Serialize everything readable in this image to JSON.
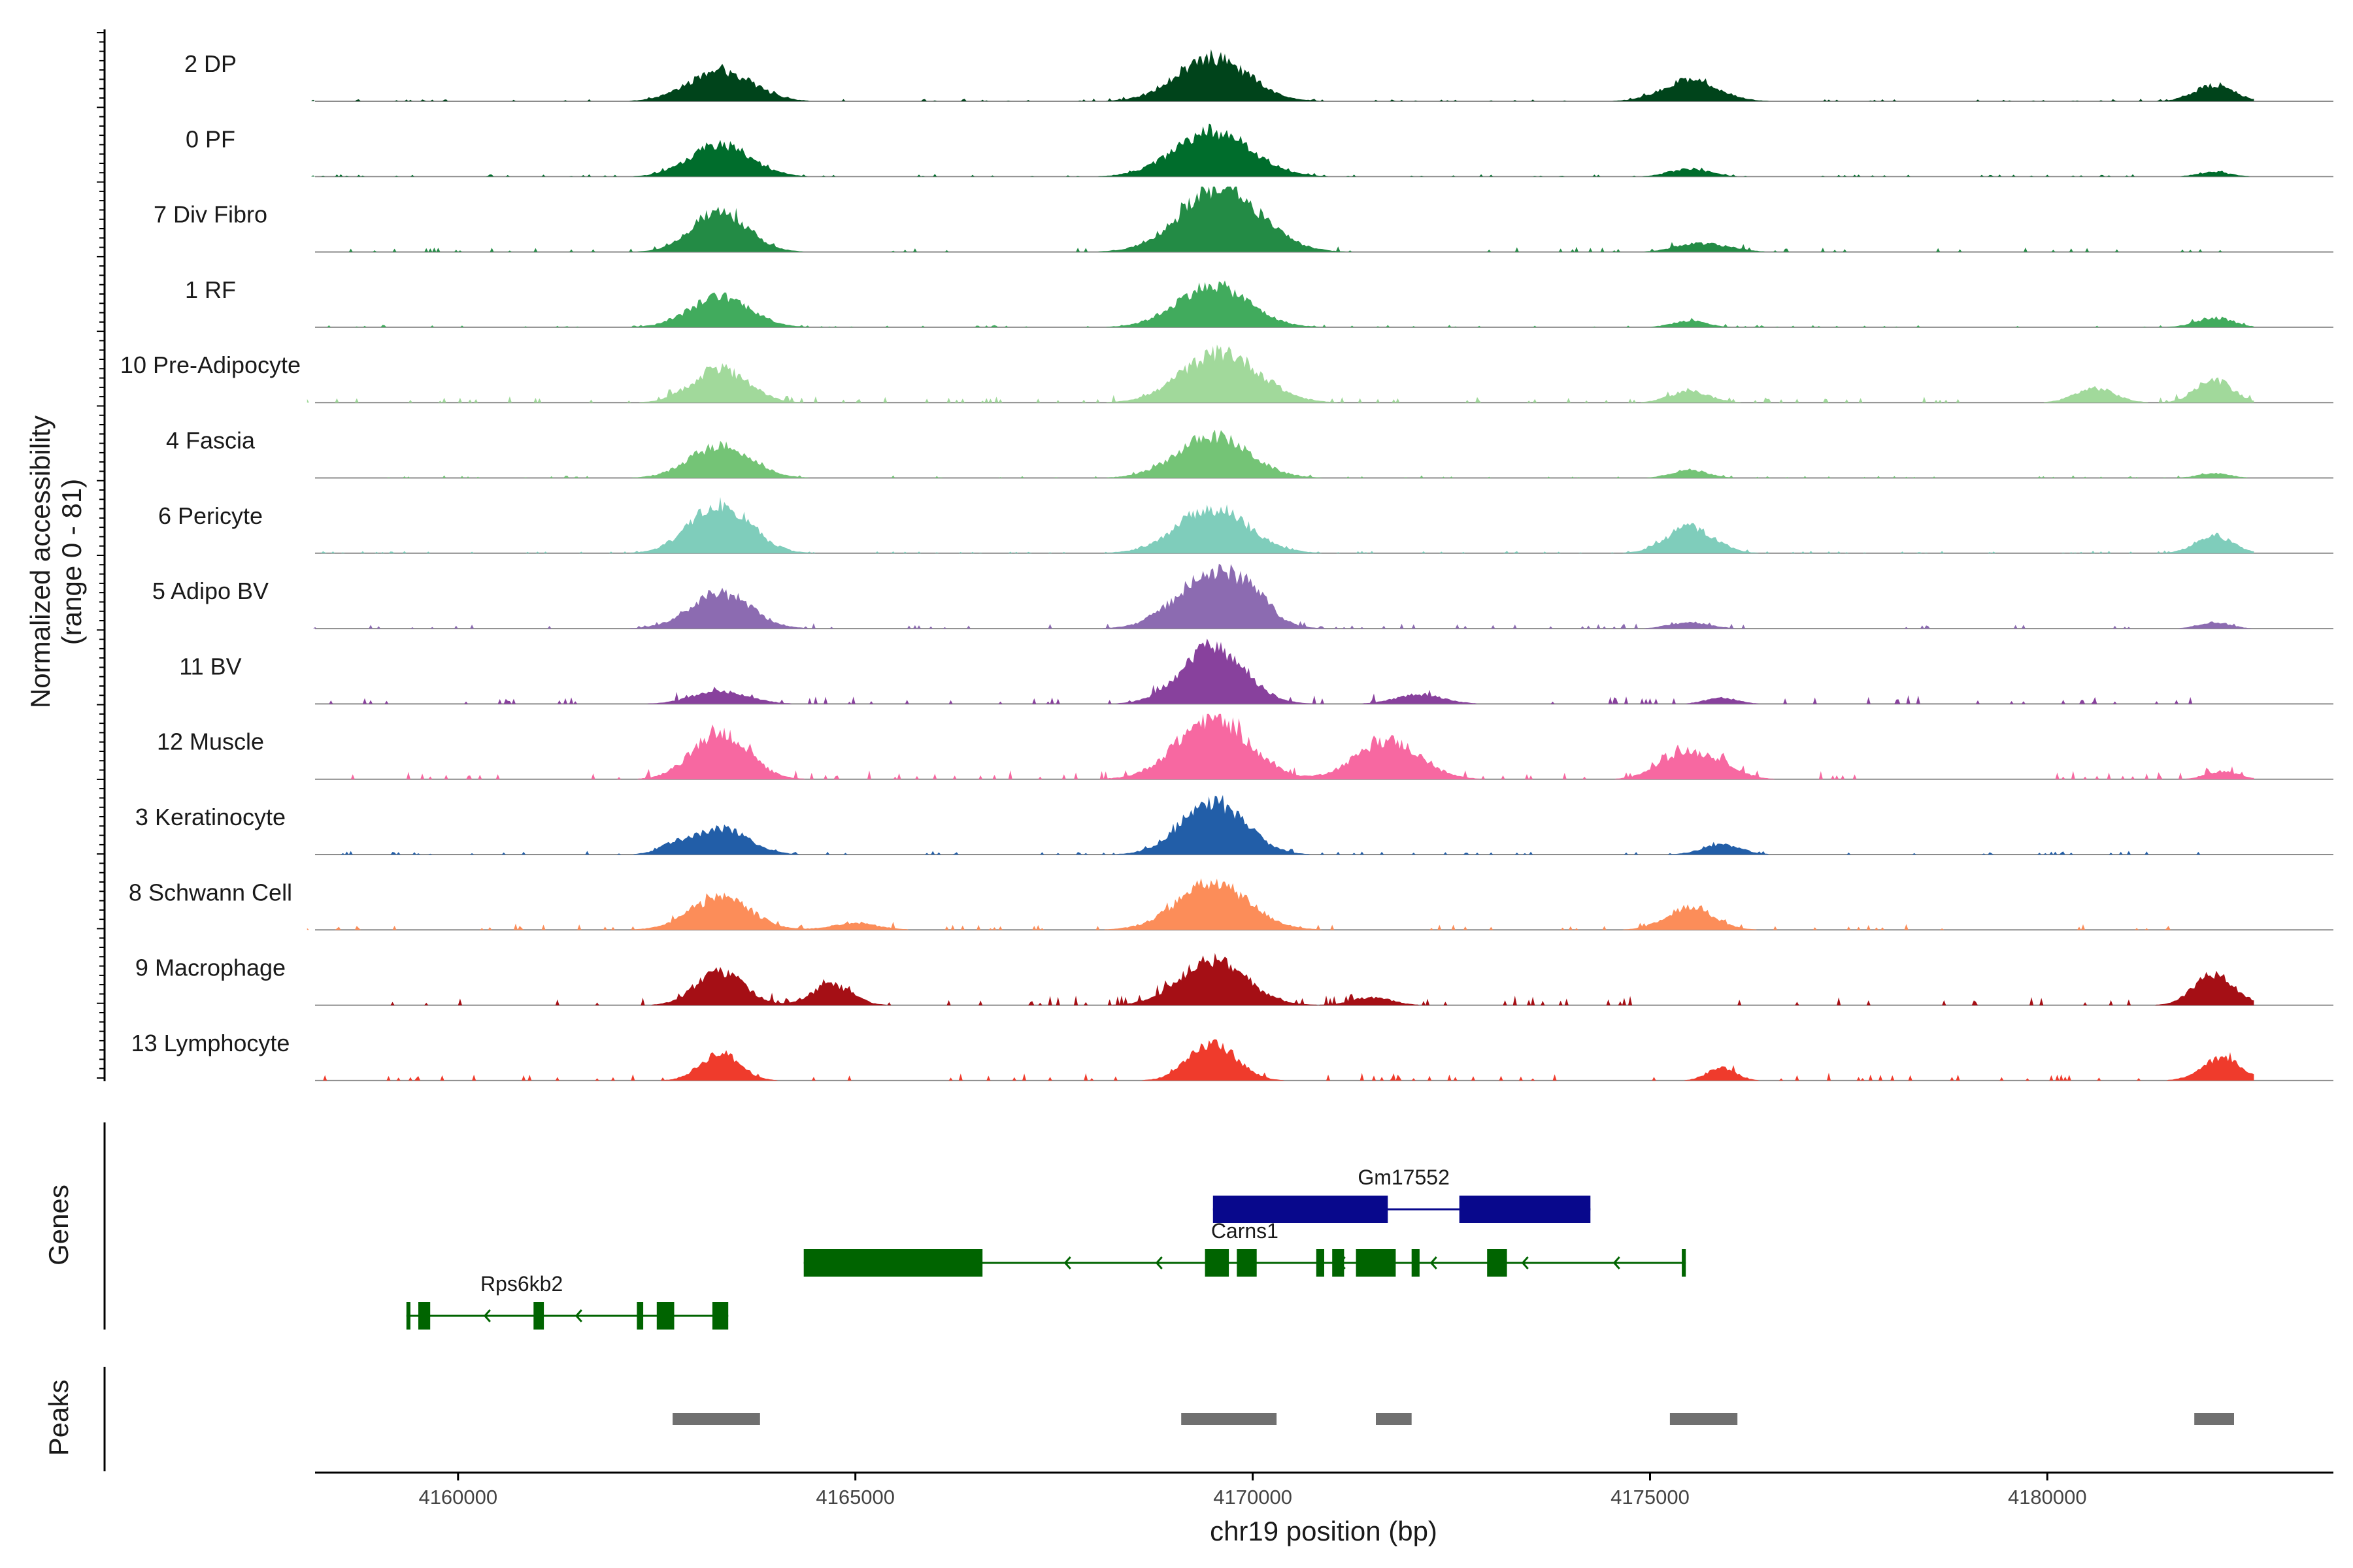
{
  "chart_data": {
    "type": "area",
    "title": "",
    "chromosome": "chr19",
    "xlabel": "chr19 position (bp)",
    "ylabel": "Normalized accessibility",
    "ylabel_range": "(range 0 - 81)",
    "ylim": [
      0,
      81
    ],
    "xlim": [
      4158200,
      4183600
    ],
    "x_ticks": [
      4160000,
      4165000,
      4170000,
      4175000,
      4180000
    ],
    "x_tick_labels": [
      "4160000",
      "4165000",
      "4170000",
      "4175000",
      "4180000"
    ],
    "tracks": [
      {
        "name": "2 DP",
        "color": "#00441b",
        "peaks": [
          [
            4163300,
            38,
            400
          ],
          [
            4169500,
            54,
            450
          ],
          [
            4175500,
            26,
            350
          ],
          [
            4182100,
            20,
            250
          ]
        ],
        "noise": 2
      },
      {
        "name": "0 PF",
        "color": "#006d2c",
        "peaks": [
          [
            4163300,
            40,
            380
          ],
          [
            4169500,
            56,
            480
          ],
          [
            4175500,
            10,
            250
          ],
          [
            4182100,
            6,
            200
          ]
        ],
        "noise": 2
      },
      {
        "name": "7 Div Fibro",
        "color": "#238b45",
        "peaks": [
          [
            4163300,
            50,
            350
          ],
          [
            4169600,
            80,
            500
          ],
          [
            4175500,
            8,
            250
          ],
          [
            4175900,
            6,
            250
          ]
        ],
        "noise": 4
      },
      {
        "name": "1 RF",
        "color": "#41ab5d",
        "peaks": [
          [
            4163300,
            38,
            380
          ],
          [
            4169500,
            52,
            450
          ],
          [
            4175500,
            8,
            220
          ],
          [
            4182100,
            12,
            230
          ]
        ],
        "noise": 2
      },
      {
        "name": "10 Pre-Adipocyte",
        "color": "#a1d99b",
        "peaks": [
          [
            4163300,
            42,
            350
          ],
          [
            4169600,
            62,
            480
          ],
          [
            4175500,
            14,
            250
          ],
          [
            4180600,
            18,
            250
          ],
          [
            4182100,
            28,
            230
          ]
        ],
        "noise": 5
      },
      {
        "name": "4 Fascia",
        "color": "#74c476",
        "peaks": [
          [
            4163300,
            40,
            380
          ],
          [
            4169500,
            52,
            450
          ],
          [
            4175500,
            10,
            230
          ],
          [
            4182100,
            6,
            200
          ]
        ],
        "noise": 2
      },
      {
        "name": "6 Pericyte",
        "color": "#7fcdbb",
        "peaks": [
          [
            4163300,
            60,
            380
          ],
          [
            4169500,
            56,
            450
          ],
          [
            4175500,
            32,
            300
          ],
          [
            4182100,
            22,
            230
          ]
        ],
        "noise": 2
      },
      {
        "name": "5 Adipo BV",
        "color": "#8c6bb1",
        "peaks": [
          [
            4163300,
            44,
            380
          ],
          [
            4169500,
            68,
            450
          ],
          [
            4170000,
            18,
            220
          ],
          [
            4175500,
            8,
            250
          ],
          [
            4182100,
            8,
            200
          ]
        ],
        "noise": 4
      },
      {
        "name": "11 BV",
        "color": "#88419d",
        "peaks": [
          [
            4163300,
            16,
            350
          ],
          [
            4169500,
            72,
            400
          ],
          [
            4172100,
            12,
            300
          ],
          [
            4175900,
            8,
            200
          ]
        ],
        "noise": 7
      },
      {
        "name": "12 Muscle",
        "color": "#f768a1",
        "peaks": [
          [
            4163300,
            58,
            350
          ],
          [
            4169500,
            76,
            450
          ],
          [
            4171700,
            48,
            400
          ],
          [
            4175400,
            32,
            300
          ],
          [
            4175900,
            16,
            250
          ],
          [
            4182200,
            10,
            200
          ]
        ],
        "noise": 7
      },
      {
        "name": "3 Keratinocyte",
        "color": "#225ea8",
        "peaks": [
          [
            4163300,
            32,
            350
          ],
          [
            4169500,
            66,
            400
          ],
          [
            4175900,
            12,
            250
          ],
          [
            4162700,
            8,
            200
          ]
        ],
        "noise": 3
      },
      {
        "name": "8 Schwann Cell",
        "color": "#fc8d59",
        "peaks": [
          [
            4163300,
            40,
            380
          ],
          [
            4169500,
            58,
            450
          ],
          [
            4175500,
            28,
            300
          ],
          [
            4165000,
            8,
            300
          ]
        ],
        "noise": 5
      },
      {
        "name": "9 Macrophage",
        "color": "#a50f15",
        "peaks": [
          [
            4163300,
            42,
            300
          ],
          [
            4164700,
            26,
            250
          ],
          [
            4169500,
            56,
            420
          ],
          [
            4171500,
            10,
            250
          ],
          [
            4182100,
            40,
            250
          ]
        ],
        "noise": 8
      },
      {
        "name": "13 Lymphocyte",
        "color": "#ef3b2c",
        "peaks": [
          [
            4163300,
            34,
            250
          ],
          [
            4169500,
            46,
            300
          ],
          [
            4175900,
            16,
            180
          ],
          [
            4182200,
            28,
            250
          ]
        ],
        "noise": 6
      }
    ],
    "genes": {
      "title": "Genes",
      "items": [
        {
          "name": "Gm17552",
          "strand": "+",
          "color": "#08088c",
          "start": 4169500,
          "end": 4174250,
          "row": 0,
          "label_x": 4171900,
          "exons": [
            [
              4169500,
              4171700
            ],
            [
              4172600,
              4174250
            ]
          ]
        },
        {
          "name": "Carns1",
          "strand": "-",
          "color": "#006400",
          "start": 4164350,
          "end": 4175450,
          "row": 1,
          "label_x": 4169900,
          "exons": [
            [
              4164350,
              4166600
            ],
            [
              4169400,
              4169700
            ],
            [
              4169800,
              4170050
            ],
            [
              4170800,
              4170900
            ],
            [
              4171000,
              4171150
            ],
            [
              4171300,
              4171800
            ],
            [
              4172000,
              4172100
            ],
            [
              4172950,
              4173200
            ],
            [
              4175400,
              4175450
            ]
          ]
        },
        {
          "name": "Rps6kb2",
          "strand": "-",
          "color": "#006400",
          "start": 4159350,
          "end": 4163400,
          "row": 2,
          "label_x": 4160800,
          "exons": [
            [
              4159350,
              4159400
            ],
            [
              4159500,
              4159650
            ],
            [
              4160950,
              4161080
            ],
            [
              4162250,
              4162330
            ],
            [
              4162500,
              4162720
            ],
            [
              4163200,
              4163400
            ]
          ]
        }
      ]
    },
    "peaks": {
      "title": "Peaks",
      "color": "#707070",
      "regions": [
        [
          4162700,
          4163800
        ],
        [
          4169100,
          4170300
        ],
        [
          4171550,
          4172000
        ],
        [
          4175250,
          4176100
        ],
        [
          4181850,
          4182350
        ]
      ]
    }
  }
}
